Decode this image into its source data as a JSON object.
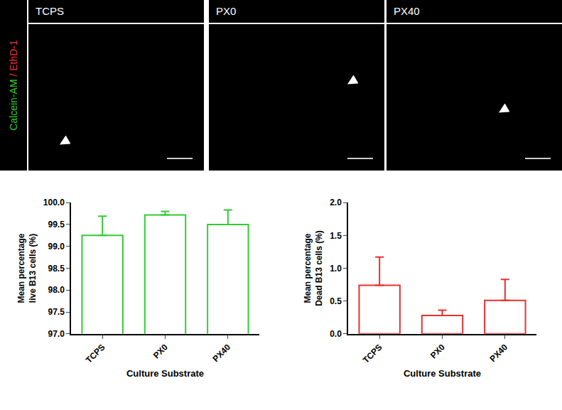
{
  "panels": {
    "stain_label": "Calcein-AM / EthD-1",
    "titles": [
      "TCPS",
      "PX0",
      "PX40"
    ]
  },
  "chart_data": [
    {
      "type": "bar",
      "categories": [
        "TCPS",
        "PX0",
        "PX40"
      ],
      "values": [
        99.25,
        99.72,
        99.5
      ],
      "error": [
        0.44,
        0.08,
        0.33
      ],
      "color": "#33cc33",
      "ylim": [
        97,
        100
      ],
      "yticks": [
        {
          "value": 97,
          "label": "97.0"
        },
        {
          "value": 97.5,
          "label": "97.5"
        },
        {
          "value": 98,
          "label": "98.0"
        },
        {
          "value": 98.5,
          "label": "98.5"
        },
        {
          "value": 99,
          "label": "99.0"
        },
        {
          "value": 99.5,
          "label": "99.5"
        },
        {
          "value": 100,
          "label": "100.0"
        }
      ],
      "y_label": "Mean percentage\nlive B13 cells (%)",
      "x_label": "Culture Substrate",
      "grid": false
    },
    {
      "type": "bar",
      "categories": [
        "TCPS",
        "PX0",
        "PX40"
      ],
      "values": [
        0.74,
        0.28,
        0.51
      ],
      "error": [
        0.43,
        0.08,
        0.32
      ],
      "color": "#e83030",
      "ylim": [
        0,
        2
      ],
      "yticks": [
        {
          "value": 0,
          "label": "0.0"
        },
        {
          "value": 0.5,
          "label": "0.5"
        },
        {
          "value": 1,
          "label": "1.0"
        },
        {
          "value": 1.5,
          "label": "1.5"
        },
        {
          "value": 2,
          "label": "2.0"
        }
      ],
      "y_label": "Mean percentage\nDead B13 cells (%)",
      "x_label": "Culture Substrate",
      "grid": false
    }
  ]
}
